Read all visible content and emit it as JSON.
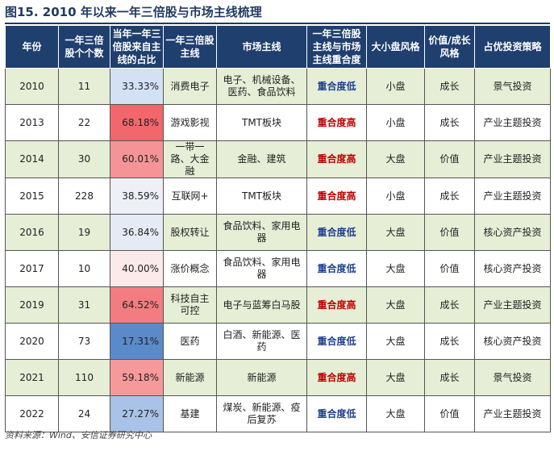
{
  "figure_title": "图15. 2010 年以来一年三倍股与市场主线梳理",
  "headers": [
    "年份",
    "一年三倍股个个数",
    "当年一年三倍股来自主线的占比",
    "一年三倍股主线",
    "市场主线",
    "一年三倍股主线与市场主线重合度",
    "大小盘风格",
    "价值/成长风格",
    "占优投资策略"
  ],
  "header_display": {
    "year": "年份",
    "count": "一年三倍股个个数",
    "ratio": "当年一年三倍股来自主线的占比",
    "stock_theme": "一年三倍股主线",
    "market_theme": "市场主线",
    "overlap": "一年三倍股主线与市场主线重合度",
    "size_style": "大小盘风格",
    "value_growth": "价值/成长风格",
    "strategy": "占优投资策略"
  },
  "rows": [
    {
      "year": "2010",
      "count": "11",
      "ratio": "33.33%",
      "ratio_color": "#d3e1f5",
      "stock_theme": "消费电子",
      "market_theme": "电子、机械设备、医药、食品饮料",
      "overlap": "重合度低",
      "overlap_level": "low",
      "size": "小盘",
      "style": "成长",
      "strategy": "景气投资"
    },
    {
      "year": "2013",
      "count": "22",
      "ratio": "68.18%",
      "ratio_color": "#f2676b",
      "stock_theme": "游戏影视",
      "market_theme": "TMT板块",
      "overlap": "重合度高",
      "overlap_level": "high",
      "size": "小盘",
      "style": "成长",
      "strategy": "产业主题投资"
    },
    {
      "year": "2014",
      "count": "30",
      "ratio": "60.01%",
      "ratio_color": "#f59497",
      "stock_theme": "一带一路、大金融",
      "market_theme": "金融、建筑",
      "overlap": "重合度高",
      "overlap_level": "high",
      "size": "大盘",
      "style": "价值",
      "strategy": "产业主题投资"
    },
    {
      "year": "2015",
      "count": "228",
      "ratio": "38.59%",
      "ratio_color": "#eef0f7",
      "stock_theme": "互联网+",
      "market_theme": "TMT板块",
      "overlap": "重合度高",
      "overlap_level": "high",
      "size": "小盘",
      "style": "成长",
      "strategy": "产业主题投资"
    },
    {
      "year": "2016",
      "count": "19",
      "ratio": "36.84%",
      "ratio_color": "#e4ebf5",
      "stock_theme": "股权转让",
      "market_theme": "食品饮料、家用电器",
      "overlap": "重合度低",
      "overlap_level": "low",
      "size": "大盘",
      "style": "价值",
      "strategy": "核心资产投资"
    },
    {
      "year": "2017",
      "count": "10",
      "ratio": "40.00%",
      "ratio_color": "#fbeaea",
      "stock_theme": "涨价概念",
      "market_theme": "食品饮料、家用电器",
      "overlap": "重合度低",
      "overlap_level": "low",
      "size": "大盘",
      "style": "价值",
      "strategy": "核心资产投资"
    },
    {
      "year": "2019",
      "count": "31",
      "ratio": "64.52%",
      "ratio_color": "#f37c80",
      "stock_theme": "科技自主可控",
      "market_theme": "电子与蓝筹白马股",
      "overlap": "重合度高",
      "overlap_level": "high",
      "size": "大盘",
      "style": "成长",
      "strategy": "产业主题投资"
    },
    {
      "year": "2020",
      "count": "73",
      "ratio": "17.31%",
      "ratio_color": "#5b8ac9",
      "stock_theme": "医药",
      "market_theme": "白酒、新能源、医药",
      "overlap": "重合度低",
      "overlap_level": "low",
      "size": "大盘",
      "style": "成长",
      "strategy": "核心资产投资"
    },
    {
      "year": "2021",
      "count": "110",
      "ratio": "59.18%",
      "ratio_color": "#f6999b",
      "stock_theme": "新能源",
      "market_theme": "新能源",
      "overlap": "重合度高",
      "overlap_level": "high",
      "size": "大盘",
      "style": "成长",
      "strategy": "景气投资"
    },
    {
      "year": "2022",
      "count": "24",
      "ratio": "27.27%",
      "ratio_color": "#a9c2e7",
      "stock_theme": "基建",
      "market_theme": "煤炭、新能源、疫后复苏",
      "overlap": "重合度低",
      "overlap_level": "low",
      "size": "大盘",
      "style": "价值",
      "strategy": "产业主题投资"
    }
  ],
  "source": "资料来源：Wind、安信证券研究中心"
}
